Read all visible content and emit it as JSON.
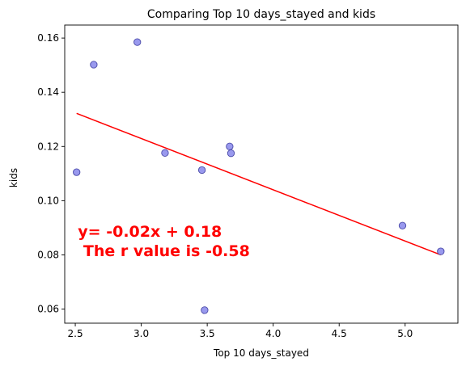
{
  "chart_data": {
    "type": "scatter",
    "title": "Comparing Top 10 days_stayed and  kids",
    "xlabel": "Top 10 days_stayed",
    "ylabel": "kids",
    "xlim": [
      2.42,
      5.4
    ],
    "ylim": [
      0.0548,
      0.1648
    ],
    "xticks": [
      2.5,
      3.0,
      3.5,
      4.0,
      4.5,
      5.0
    ],
    "xtick_labels": [
      "2.5",
      "3.0",
      "3.5",
      "4.0",
      "4.5",
      "5.0"
    ],
    "yticks": [
      0.06,
      0.08,
      0.1,
      0.12,
      0.14,
      0.16
    ],
    "ytick_labels": [
      "0.06",
      "0.08",
      "0.10",
      "0.12",
      "0.14",
      "0.16"
    ],
    "grid": false,
    "points": [
      {
        "x": 2.51,
        "y": 0.1105
      },
      {
        "x": 2.64,
        "y": 0.1502
      },
      {
        "x": 2.97,
        "y": 0.1585
      },
      {
        "x": 3.18,
        "y": 0.1176
      },
      {
        "x": 3.46,
        "y": 0.1113
      },
      {
        "x": 3.48,
        "y": 0.0596
      },
      {
        "x": 3.67,
        "y": 0.12
      },
      {
        "x": 3.68,
        "y": 0.1175
      },
      {
        "x": 4.98,
        "y": 0.0908
      },
      {
        "x": 5.27,
        "y": 0.0813
      }
    ],
    "regression_line": {
      "x": [
        2.51,
        5.27
      ],
      "y": [
        0.1322,
        0.08
      ]
    },
    "annotation_lines": [
      "y= -0.02x + 0.18",
      " The r value is -0.58"
    ],
    "annotation_anchor": {
      "x": 2.52,
      "y": 0.0867
    },
    "colors": {
      "marker_fill": "#9999ee",
      "marker_edge": "#4a4aa8",
      "regression": "#ff0000",
      "annotation": "#ff0000"
    }
  }
}
